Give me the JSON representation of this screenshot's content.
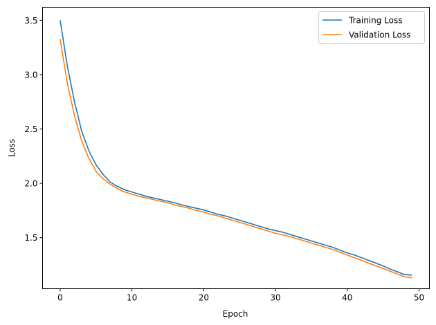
{
  "chart_data": {
    "type": "line",
    "title": "",
    "xlabel": "Epoch",
    "ylabel": "Loss",
    "xlim": [
      -2.45,
      51.45
    ],
    "ylim": [
      1.03,
      3.62
    ],
    "xticks": [
      0,
      10,
      20,
      30,
      40,
      50
    ],
    "yticks": [
      1.5,
      2.0,
      2.5,
      3.0,
      3.5
    ],
    "xtick_labels": [
      "0",
      "10",
      "20",
      "30",
      "40",
      "50"
    ],
    "ytick_labels": [
      "1.5",
      "2.0",
      "2.5",
      "3.0",
      "3.5"
    ],
    "grid": false,
    "legend_position": "upper right",
    "x": [
      0,
      1,
      2,
      3,
      4,
      5,
      6,
      7,
      8,
      9,
      10,
      11,
      12,
      13,
      14,
      15,
      16,
      17,
      18,
      19,
      20,
      21,
      22,
      23,
      24,
      25,
      26,
      27,
      28,
      29,
      30,
      31,
      32,
      33,
      34,
      35,
      36,
      37,
      38,
      39,
      40,
      41,
      42,
      43,
      44,
      45,
      46,
      47,
      48,
      49
    ],
    "series": [
      {
        "name": "Training Loss",
        "color": "#1f77b4",
        "values": [
          3.5,
          3.08,
          2.75,
          2.48,
          2.3,
          2.17,
          2.08,
          2.01,
          1.97,
          1.94,
          1.92,
          1.9,
          1.88,
          1.865,
          1.85,
          1.835,
          1.82,
          1.8,
          1.785,
          1.77,
          1.755,
          1.735,
          1.715,
          1.7,
          1.68,
          1.66,
          1.64,
          1.62,
          1.6,
          1.58,
          1.565,
          1.55,
          1.53,
          1.51,
          1.49,
          1.47,
          1.45,
          1.43,
          1.41,
          1.385,
          1.36,
          1.34,
          1.315,
          1.29,
          1.265,
          1.24,
          1.21,
          1.185,
          1.16,
          1.155
        ]
      },
      {
        "name": "Validation Loss",
        "color": "#ff7f0e",
        "values": [
          3.33,
          2.92,
          2.62,
          2.39,
          2.23,
          2.11,
          2.04,
          1.99,
          1.95,
          1.92,
          1.9,
          1.88,
          1.865,
          1.85,
          1.835,
          1.82,
          1.8,
          1.785,
          1.77,
          1.75,
          1.735,
          1.715,
          1.7,
          1.68,
          1.66,
          1.64,
          1.62,
          1.6,
          1.58,
          1.56,
          1.54,
          1.525,
          1.51,
          1.49,
          1.47,
          1.45,
          1.43,
          1.41,
          1.39,
          1.365,
          1.34,
          1.315,
          1.29,
          1.265,
          1.24,
          1.215,
          1.19,
          1.165,
          1.14,
          1.13
        ]
      }
    ]
  }
}
